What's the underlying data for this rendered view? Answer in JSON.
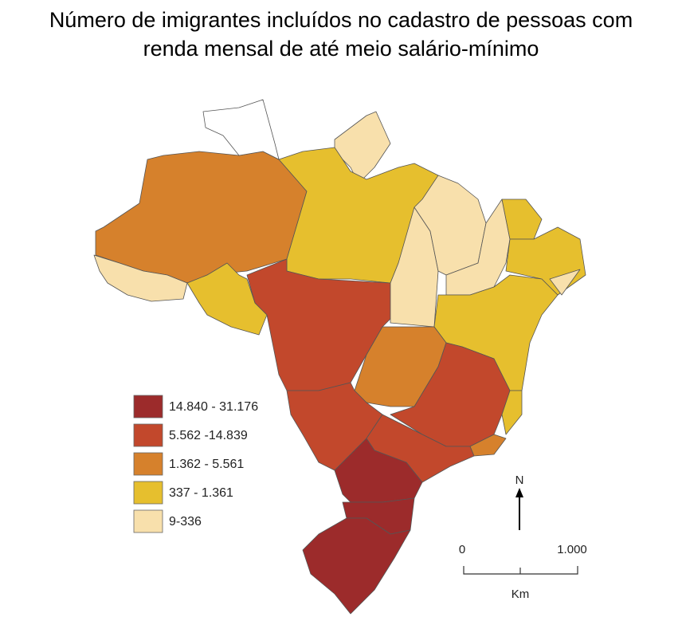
{
  "title": [
    "Número de imigrantes incluídos no cadastro de pessoas com",
    "renda mensal de até meio salário-mínimo"
  ],
  "legend": [
    {
      "label": "14.840 - 31.176",
      "color": "#9c2b2b"
    },
    {
      "label": "5.562 -14.839",
      "color": "#c2482c"
    },
    {
      "label": "1.362 - 5.561",
      "color": "#d6812c"
    },
    {
      "label": "337 - 1.361",
      "color": "#e6bf2e"
    },
    {
      "label": "9-336",
      "color": "#f8e0ac"
    }
  ],
  "north": "N",
  "scale_bar": {
    "start": "0",
    "end": "1.000",
    "unit": "Km"
  }
}
